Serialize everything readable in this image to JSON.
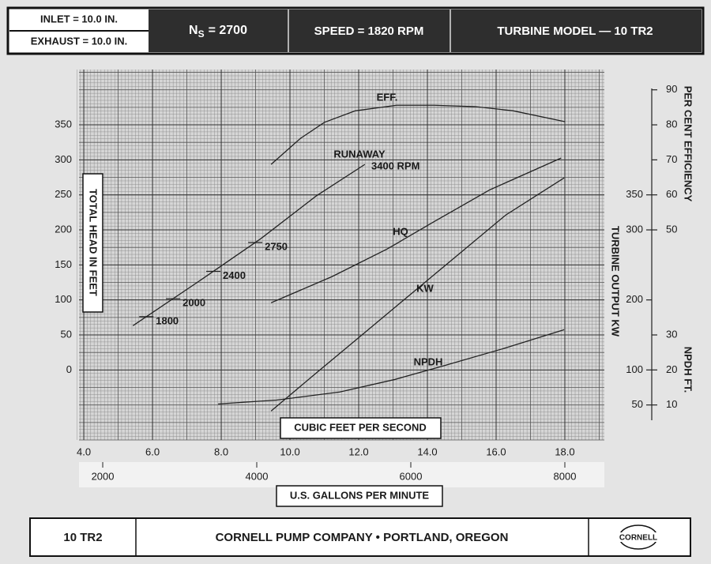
{
  "header": {
    "inlet": "INLET = 10.0 IN.",
    "exhaust": "EXHAUST = 10.0 IN.",
    "ns": {
      "main": "N",
      "sub": "S",
      "rest": "= 2700"
    },
    "speed": "SPEED = 1820 RPM",
    "model": "TURBINE MODEL — 10 TR2"
  },
  "chart_data": {
    "type": "line",
    "xlabel": "CUBIC FEET PER SECOND",
    "x2label": "U.S. GALLONS PER MINUTE",
    "ylabel": "TOTAL HEAD IN FEET",
    "y2label": "PER CENT EFFICIENCY",
    "y3label": "TURBINE OUTPUT KW",
    "y4label": "NPDH FT.",
    "xlim": [
      3.86,
      19.15
    ],
    "xticks": [
      {
        "value": 4,
        "label": "4.0"
      },
      {
        "value": 6,
        "label": "6.0"
      },
      {
        "value": 8,
        "label": "8.0"
      },
      {
        "value": 10,
        "label": "10.0"
      },
      {
        "value": 12,
        "label": "12.0"
      },
      {
        "value": 14,
        "label": "14.0"
      },
      {
        "value": 16,
        "label": "16.0"
      },
      {
        "value": 18,
        "label": "18.0"
      }
    ],
    "x2lim": [
      1692,
      8513
    ],
    "x2ticks": [
      2000,
      4000,
      6000,
      8000
    ],
    "ylim": [
      -100,
      429
    ],
    "yticks": [
      0,
      50,
      100,
      150,
      200,
      250,
      300,
      350
    ],
    "y2lim": [
      -10,
      95.8
    ],
    "y2ticks": [
      50,
      60,
      70,
      80,
      90
    ],
    "y3lim": [
      0,
      529
    ],
    "y3ticks": [
      50,
      100,
      200,
      300,
      350
    ],
    "y4lim": [
      0,
      105.8
    ],
    "y4ticks": [
      10,
      20,
      30
    ],
    "grid": true,
    "series": [
      {
        "name": "EFF.",
        "axis": "y2",
        "color": "#222222",
        "x": [
          9.45,
          10.3,
          11.0,
          11.9,
          13.1,
          14.2,
          15.4,
          16.5,
          18.0
        ],
        "values": [
          68.7,
          76.1,
          80.7,
          84.0,
          85.6,
          85.6,
          85.2,
          84.0,
          80.9
        ]
      },
      {
        "name": "RUNAWAY",
        "note": "3400 RPM",
        "axis": "y",
        "color": "#222222",
        "x": [
          5.43,
          7.31,
          9.15,
          10.76,
          12.18
        ],
        "values": [
          63.2,
          125.3,
          187.4,
          248.3,
          293.5
        ],
        "annotations": [
          {
            "text": "1800",
            "x": 5.82
          },
          {
            "text": "2000",
            "x": 6.6
          },
          {
            "text": "2400",
            "x": 7.77
          },
          {
            "text": "2750",
            "x": 8.99
          }
        ]
      },
      {
        "name": "HQ",
        "axis": "y",
        "color": "#222222",
        "x": [
          9.45,
          11.22,
          12.83,
          14.21,
          15.82,
          17.89
        ],
        "values": [
          95.9,
          133.2,
          172.7,
          212.2,
          257.3,
          302.5
        ]
      },
      {
        "name": "KW",
        "axis": "y3",
        "color": "#222222",
        "x": [
          9.45,
          10.76,
          12.14,
          13.52,
          14.9,
          16.28,
          17.98
        ],
        "values": [
          41.3,
          95.5,
          151.9,
          208.4,
          264.8,
          321.2,
          374.3
        ]
      },
      {
        "name": "NPDH",
        "axis": "y4",
        "color": "#222222",
        "x": [
          7.91,
          9.61,
          11.45,
          13.06,
          14.44,
          16.28,
          17.98
        ],
        "values": [
          10.3,
          11.4,
          13.7,
          17.3,
          21.1,
          26.3,
          31.5
        ]
      }
    ]
  },
  "footer": {
    "model": "10 TR2",
    "company": "CORNELL PUMP COMPANY • PORTLAND, OREGON",
    "logo": "CORNELL"
  }
}
